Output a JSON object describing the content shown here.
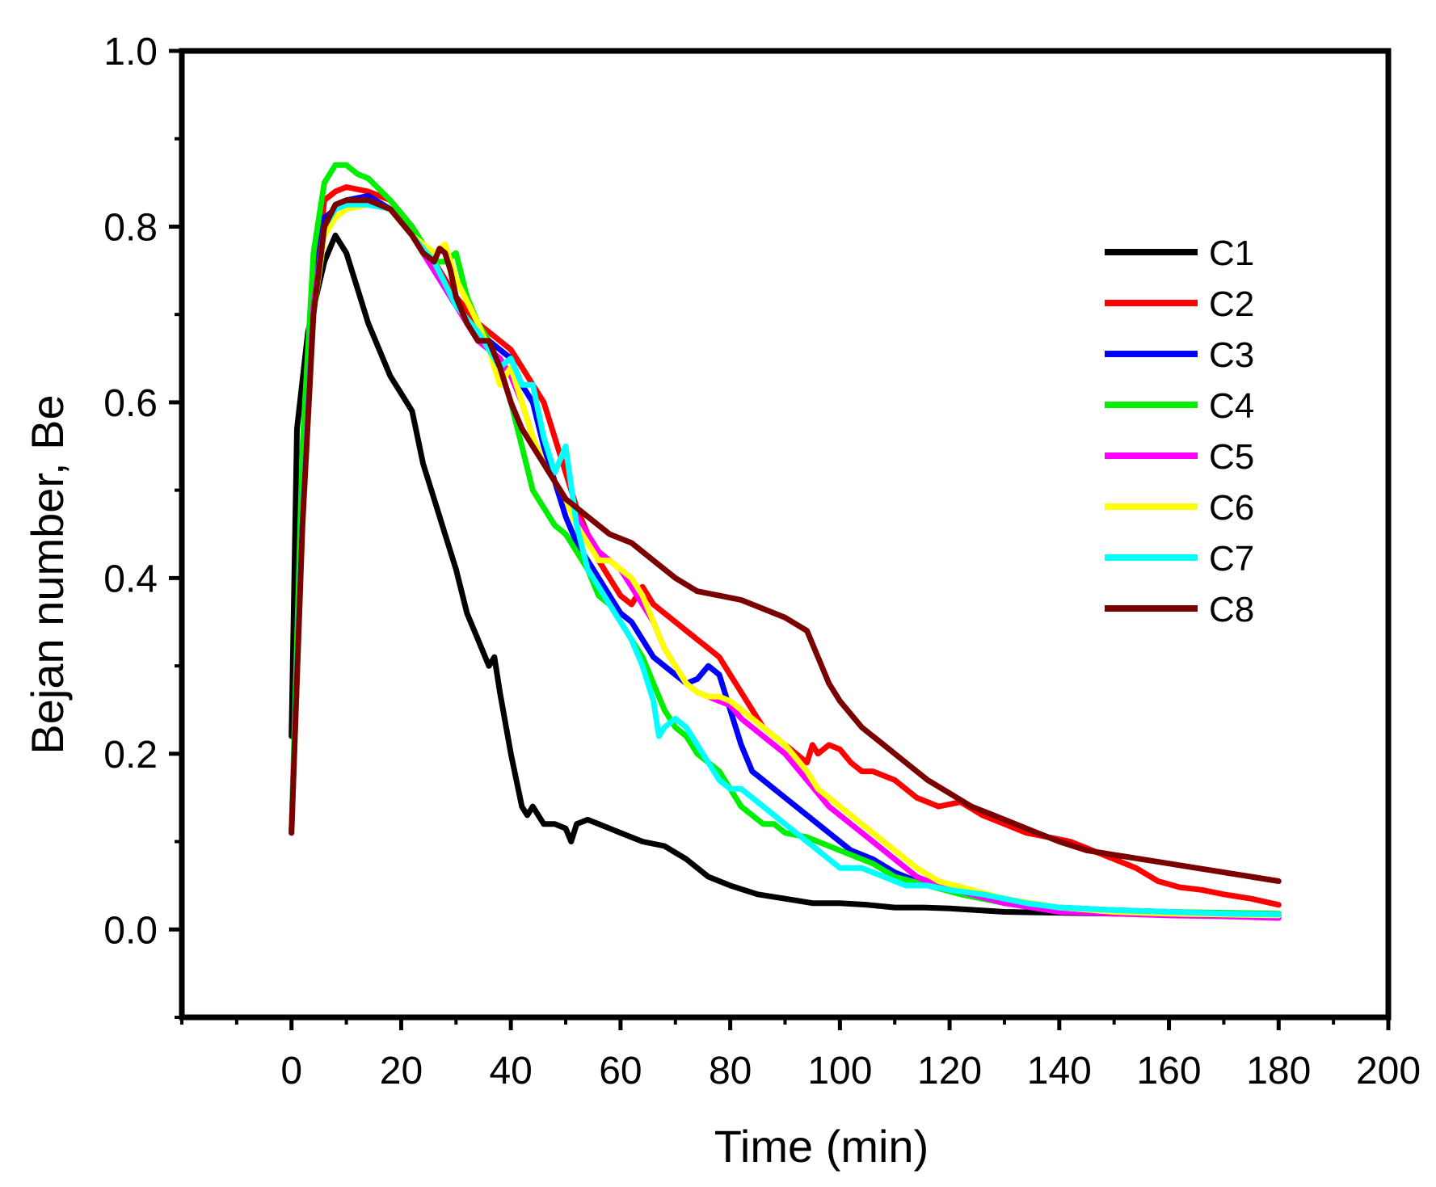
{
  "chart_data": {
    "type": "line",
    "title": "",
    "xlabel": "Time (min)",
    "ylabel": "Bejan number, Be",
    "xlim": [
      -20,
      200
    ],
    "ylim": [
      -0.1,
      1.0
    ],
    "xticks": [
      0,
      20,
      40,
      60,
      80,
      100,
      120,
      140,
      160,
      180,
      200
    ],
    "xtick_labels": [
      "0",
      "20",
      "40",
      "60",
      "80",
      "100",
      "120",
      "140",
      "160",
      "180",
      "200"
    ],
    "yticks": [
      0.0,
      0.2,
      0.4,
      0.6,
      0.8,
      1.0
    ],
    "ytick_labels": [
      "0.0",
      "0.2",
      "0.4",
      "0.6",
      "0.8",
      "1.0"
    ],
    "grid": false,
    "legend_position": "right",
    "series": [
      {
        "name": "C1",
        "color": "#000000",
        "x": [
          0,
          1,
          3,
          6,
          8,
          10,
          12,
          14,
          16,
          18,
          20,
          22,
          24,
          26,
          28,
          30,
          32,
          34,
          36,
          37,
          38,
          40,
          42,
          43,
          44,
          46,
          48,
          50,
          51,
          52,
          54,
          56,
          60,
          64,
          68,
          72,
          76,
          80,
          85,
          90,
          95,
          100,
          105,
          110,
          115,
          120,
          125,
          130,
          140,
          150,
          160,
          170,
          180
        ],
        "y": [
          0.22,
          0.57,
          0.68,
          0.76,
          0.79,
          0.77,
          0.73,
          0.69,
          0.66,
          0.63,
          0.61,
          0.59,
          0.53,
          0.49,
          0.45,
          0.41,
          0.36,
          0.33,
          0.3,
          0.31,
          0.27,
          0.2,
          0.14,
          0.13,
          0.14,
          0.12,
          0.12,
          0.115,
          0.1,
          0.12,
          0.125,
          0.12,
          0.11,
          0.1,
          0.095,
          0.08,
          0.06,
          0.05,
          0.04,
          0.035,
          0.03,
          0.03,
          0.028,
          0.025,
          0.025,
          0.024,
          0.022,
          0.02,
          0.019,
          0.018,
          0.017,
          0.017,
          0.016
        ]
      },
      {
        "name": "C2",
        "color": "#ff0000",
        "x": [
          0,
          2,
          4,
          6,
          8,
          10,
          14,
          18,
          22,
          26,
          30,
          34,
          38,
          40,
          42,
          44,
          46,
          48,
          50,
          52,
          54,
          56,
          58,
          60,
          62,
          64,
          66,
          68,
          70,
          72,
          74,
          76,
          78,
          80,
          82,
          84,
          86,
          88,
          90,
          92,
          94,
          95,
          96,
          98,
          100,
          102,
          104,
          106,
          110,
          114,
          118,
          122,
          126,
          130,
          134,
          138,
          142,
          146,
          150,
          154,
          158,
          162,
          166,
          170,
          175,
          180
        ],
        "y": [
          0.11,
          0.5,
          0.72,
          0.83,
          0.84,
          0.845,
          0.84,
          0.83,
          0.8,
          0.76,
          0.72,
          0.69,
          0.67,
          0.66,
          0.64,
          0.62,
          0.6,
          0.56,
          0.52,
          0.48,
          0.45,
          0.42,
          0.4,
          0.38,
          0.37,
          0.39,
          0.37,
          0.36,
          0.35,
          0.34,
          0.33,
          0.32,
          0.31,
          0.29,
          0.27,
          0.25,
          0.23,
          0.22,
          0.21,
          0.2,
          0.19,
          0.21,
          0.2,
          0.21,
          0.205,
          0.19,
          0.18,
          0.18,
          0.17,
          0.15,
          0.14,
          0.145,
          0.13,
          0.12,
          0.11,
          0.105,
          0.1,
          0.09,
          0.08,
          0.07,
          0.055,
          0.048,
          0.045,
          0.04,
          0.035,
          0.028
        ]
      },
      {
        "name": "C3",
        "color": "#0000ff",
        "x": [
          0,
          2,
          4,
          6,
          8,
          10,
          14,
          18,
          22,
          26,
          30,
          34,
          38,
          40,
          42,
          44,
          46,
          48,
          50,
          52,
          54,
          56,
          58,
          60,
          62,
          64,
          66,
          68,
          70,
          72,
          74,
          76,
          78,
          80,
          82,
          84,
          86,
          88,
          90,
          94,
          98,
          102,
          106,
          110,
          114,
          118,
          124,
          130,
          140,
          150,
          160,
          170,
          180
        ],
        "y": [
          0.11,
          0.48,
          0.72,
          0.81,
          0.82,
          0.83,
          0.835,
          0.82,
          0.79,
          0.75,
          0.71,
          0.68,
          0.66,
          0.65,
          0.62,
          0.6,
          0.55,
          0.51,
          0.47,
          0.44,
          0.42,
          0.4,
          0.38,
          0.36,
          0.35,
          0.33,
          0.31,
          0.3,
          0.29,
          0.28,
          0.285,
          0.3,
          0.29,
          0.25,
          0.21,
          0.18,
          0.17,
          0.16,
          0.15,
          0.13,
          0.11,
          0.09,
          0.08,
          0.065,
          0.055,
          0.05,
          0.04,
          0.03,
          0.025,
          0.022,
          0.02,
          0.018,
          0.016
        ]
      },
      {
        "name": "C4",
        "color": "#00ee00",
        "x": [
          0,
          2,
          4,
          6,
          8,
          10,
          12,
          14,
          18,
          22,
          26,
          28,
          30,
          32,
          34,
          36,
          38,
          40,
          42,
          44,
          46,
          48,
          50,
          52,
          54,
          56,
          58,
          60,
          62,
          64,
          66,
          68,
          70,
          72,
          74,
          76,
          78,
          80,
          82,
          84,
          86,
          88,
          90,
          94,
          98,
          102,
          106,
          110,
          116,
          122,
          130,
          140,
          150,
          160,
          170,
          180
        ],
        "y": [
          0.11,
          0.55,
          0.77,
          0.85,
          0.87,
          0.87,
          0.86,
          0.855,
          0.83,
          0.8,
          0.76,
          0.76,
          0.77,
          0.72,
          0.69,
          0.67,
          0.64,
          0.6,
          0.55,
          0.5,
          0.48,
          0.46,
          0.45,
          0.43,
          0.41,
          0.38,
          0.37,
          0.35,
          0.33,
          0.31,
          0.28,
          0.25,
          0.23,
          0.22,
          0.2,
          0.19,
          0.18,
          0.16,
          0.14,
          0.13,
          0.12,
          0.12,
          0.11,
          0.105,
          0.095,
          0.085,
          0.075,
          0.06,
          0.05,
          0.04,
          0.03,
          0.025,
          0.022,
          0.02,
          0.019,
          0.018
        ]
      },
      {
        "name": "C5",
        "color": "#ff00ff",
        "x": [
          0,
          2,
          4,
          6,
          8,
          10,
          14,
          18,
          22,
          26,
          30,
          34,
          38,
          40,
          42,
          44,
          46,
          48,
          50,
          52,
          54,
          56,
          58,
          60,
          62,
          64,
          66,
          68,
          70,
          72,
          74,
          76,
          78,
          80,
          82,
          84,
          86,
          88,
          90,
          94,
          98,
          102,
          106,
          110,
          114,
          118,
          124,
          130,
          140,
          150,
          160,
          170,
          180
        ],
        "y": [
          0.11,
          0.47,
          0.71,
          0.8,
          0.82,
          0.825,
          0.83,
          0.82,
          0.79,
          0.75,
          0.71,
          0.67,
          0.65,
          0.63,
          0.6,
          0.56,
          0.53,
          0.51,
          0.49,
          0.47,
          0.45,
          0.43,
          0.42,
          0.41,
          0.39,
          0.37,
          0.35,
          0.32,
          0.3,
          0.28,
          0.27,
          0.265,
          0.26,
          0.255,
          0.24,
          0.23,
          0.22,
          0.21,
          0.2,
          0.17,
          0.14,
          0.12,
          0.1,
          0.08,
          0.06,
          0.05,
          0.04,
          0.03,
          0.02,
          0.018,
          0.016,
          0.015,
          0.013
        ]
      },
      {
        "name": "C6",
        "color": "#ffff00",
        "x": [
          0,
          2,
          4,
          6,
          8,
          10,
          14,
          18,
          22,
          26,
          28,
          30,
          34,
          36,
          38,
          40,
          42,
          44,
          46,
          48,
          50,
          52,
          54,
          56,
          58,
          60,
          62,
          64,
          66,
          68,
          70,
          72,
          74,
          76,
          78,
          80,
          82,
          84,
          86,
          88,
          90,
          94,
          96,
          98,
          102,
          106,
          110,
          114,
          118,
          124,
          130,
          140,
          150,
          160,
          170,
          180
        ],
        "y": [
          0.11,
          0.46,
          0.7,
          0.79,
          0.81,
          0.82,
          0.825,
          0.82,
          0.79,
          0.77,
          0.78,
          0.74,
          0.69,
          0.66,
          0.62,
          0.64,
          0.6,
          0.56,
          0.53,
          0.51,
          0.49,
          0.46,
          0.44,
          0.42,
          0.42,
          0.41,
          0.4,
          0.38,
          0.35,
          0.32,
          0.3,
          0.28,
          0.27,
          0.265,
          0.265,
          0.26,
          0.25,
          0.24,
          0.23,
          0.22,
          0.21,
          0.18,
          0.16,
          0.15,
          0.13,
          0.11,
          0.09,
          0.07,
          0.055,
          0.045,
          0.035,
          0.025,
          0.02,
          0.018,
          0.017,
          0.016
        ]
      },
      {
        "name": "C7",
        "color": "#00ffff",
        "x": [
          0,
          2,
          4,
          6,
          8,
          10,
          14,
          18,
          22,
          26,
          30,
          34,
          38,
          40,
          42,
          44,
          46,
          48,
          50,
          52,
          54,
          56,
          58,
          60,
          62,
          64,
          66,
          67,
          68,
          70,
          72,
          74,
          76,
          78,
          80,
          82,
          84,
          86,
          88,
          90,
          92,
          94,
          96,
          98,
          100,
          104,
          108,
          112,
          116,
          120,
          126,
          130,
          134,
          140,
          150,
          160,
          170,
          180
        ],
        "y": [
          0.11,
          0.47,
          0.7,
          0.8,
          0.82,
          0.825,
          0.825,
          0.82,
          0.79,
          0.76,
          0.71,
          0.68,
          0.64,
          0.65,
          0.62,
          0.62,
          0.56,
          0.52,
          0.55,
          0.46,
          0.41,
          0.39,
          0.37,
          0.35,
          0.33,
          0.3,
          0.26,
          0.22,
          0.23,
          0.24,
          0.23,
          0.21,
          0.19,
          0.17,
          0.16,
          0.16,
          0.15,
          0.14,
          0.13,
          0.12,
          0.11,
          0.1,
          0.09,
          0.08,
          0.07,
          0.07,
          0.06,
          0.05,
          0.05,
          0.045,
          0.04,
          0.035,
          0.03,
          0.025,
          0.022,
          0.02,
          0.018,
          0.017
        ]
      },
      {
        "name": "C8",
        "color": "#7b0000",
        "x": [
          0,
          2,
          4,
          6,
          8,
          10,
          14,
          18,
          22,
          24,
          26,
          27,
          28,
          29,
          30,
          32,
          34,
          36,
          38,
          40,
          42,
          44,
          46,
          48,
          50,
          54,
          58,
          62,
          66,
          70,
          74,
          78,
          82,
          86,
          90,
          94,
          96,
          98,
          100,
          104,
          108,
          112,
          116,
          120,
          124,
          128,
          132,
          136,
          140,
          145,
          150,
          155,
          160,
          165,
          170,
          175,
          180
        ],
        "y": [
          0.11,
          0.46,
          0.7,
          0.8,
          0.825,
          0.83,
          0.83,
          0.82,
          0.79,
          0.77,
          0.76,
          0.775,
          0.77,
          0.75,
          0.72,
          0.69,
          0.67,
          0.67,
          0.64,
          0.6,
          0.57,
          0.55,
          0.53,
          0.51,
          0.49,
          0.47,
          0.45,
          0.44,
          0.42,
          0.4,
          0.385,
          0.38,
          0.375,
          0.365,
          0.355,
          0.34,
          0.31,
          0.28,
          0.26,
          0.23,
          0.21,
          0.19,
          0.17,
          0.155,
          0.14,
          0.13,
          0.12,
          0.11,
          0.1,
          0.09,
          0.085,
          0.08,
          0.075,
          0.07,
          0.065,
          0.06,
          0.055
        ]
      }
    ]
  }
}
